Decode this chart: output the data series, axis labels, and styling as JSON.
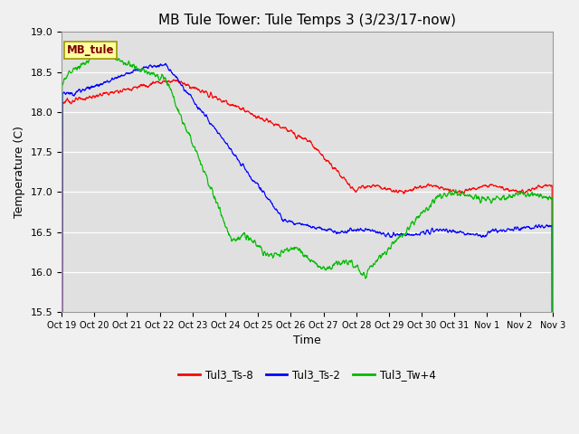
{
  "title": "MB Tule Tower: Tule Temps 3 (3/23/17-now)",
  "ylabel": "Temperature (C)",
  "xlabel": "Time",
  "ylim": [
    15.5,
    19.0
  ],
  "legend_label": "MB_tule",
  "series_labels": [
    "Tul3_Ts-8",
    "Tul3_Ts-2",
    "Tul3_Tw+4"
  ],
  "series_colors": [
    "#ff0000",
    "#0000ff",
    "#00bb00"
  ],
  "xtick_labels": [
    "Oct 19",
    "Oct 20",
    "Oct 21",
    "Oct 22",
    "Oct 23",
    "Oct 24",
    "Oct 25",
    "Oct 26",
    "Oct 27",
    "Oct 28",
    "Oct 29",
    "Oct 30",
    "Oct 31",
    "Nov 1",
    "Nov 2",
    "Nov 3"
  ],
  "n_points": 1600,
  "yticks": [
    15.5,
    16.0,
    16.5,
    17.0,
    17.5,
    18.0,
    18.5,
    19.0
  ],
  "title_fontsize": 11,
  "axis_fontsize": 9,
  "tick_fontsize": 8
}
